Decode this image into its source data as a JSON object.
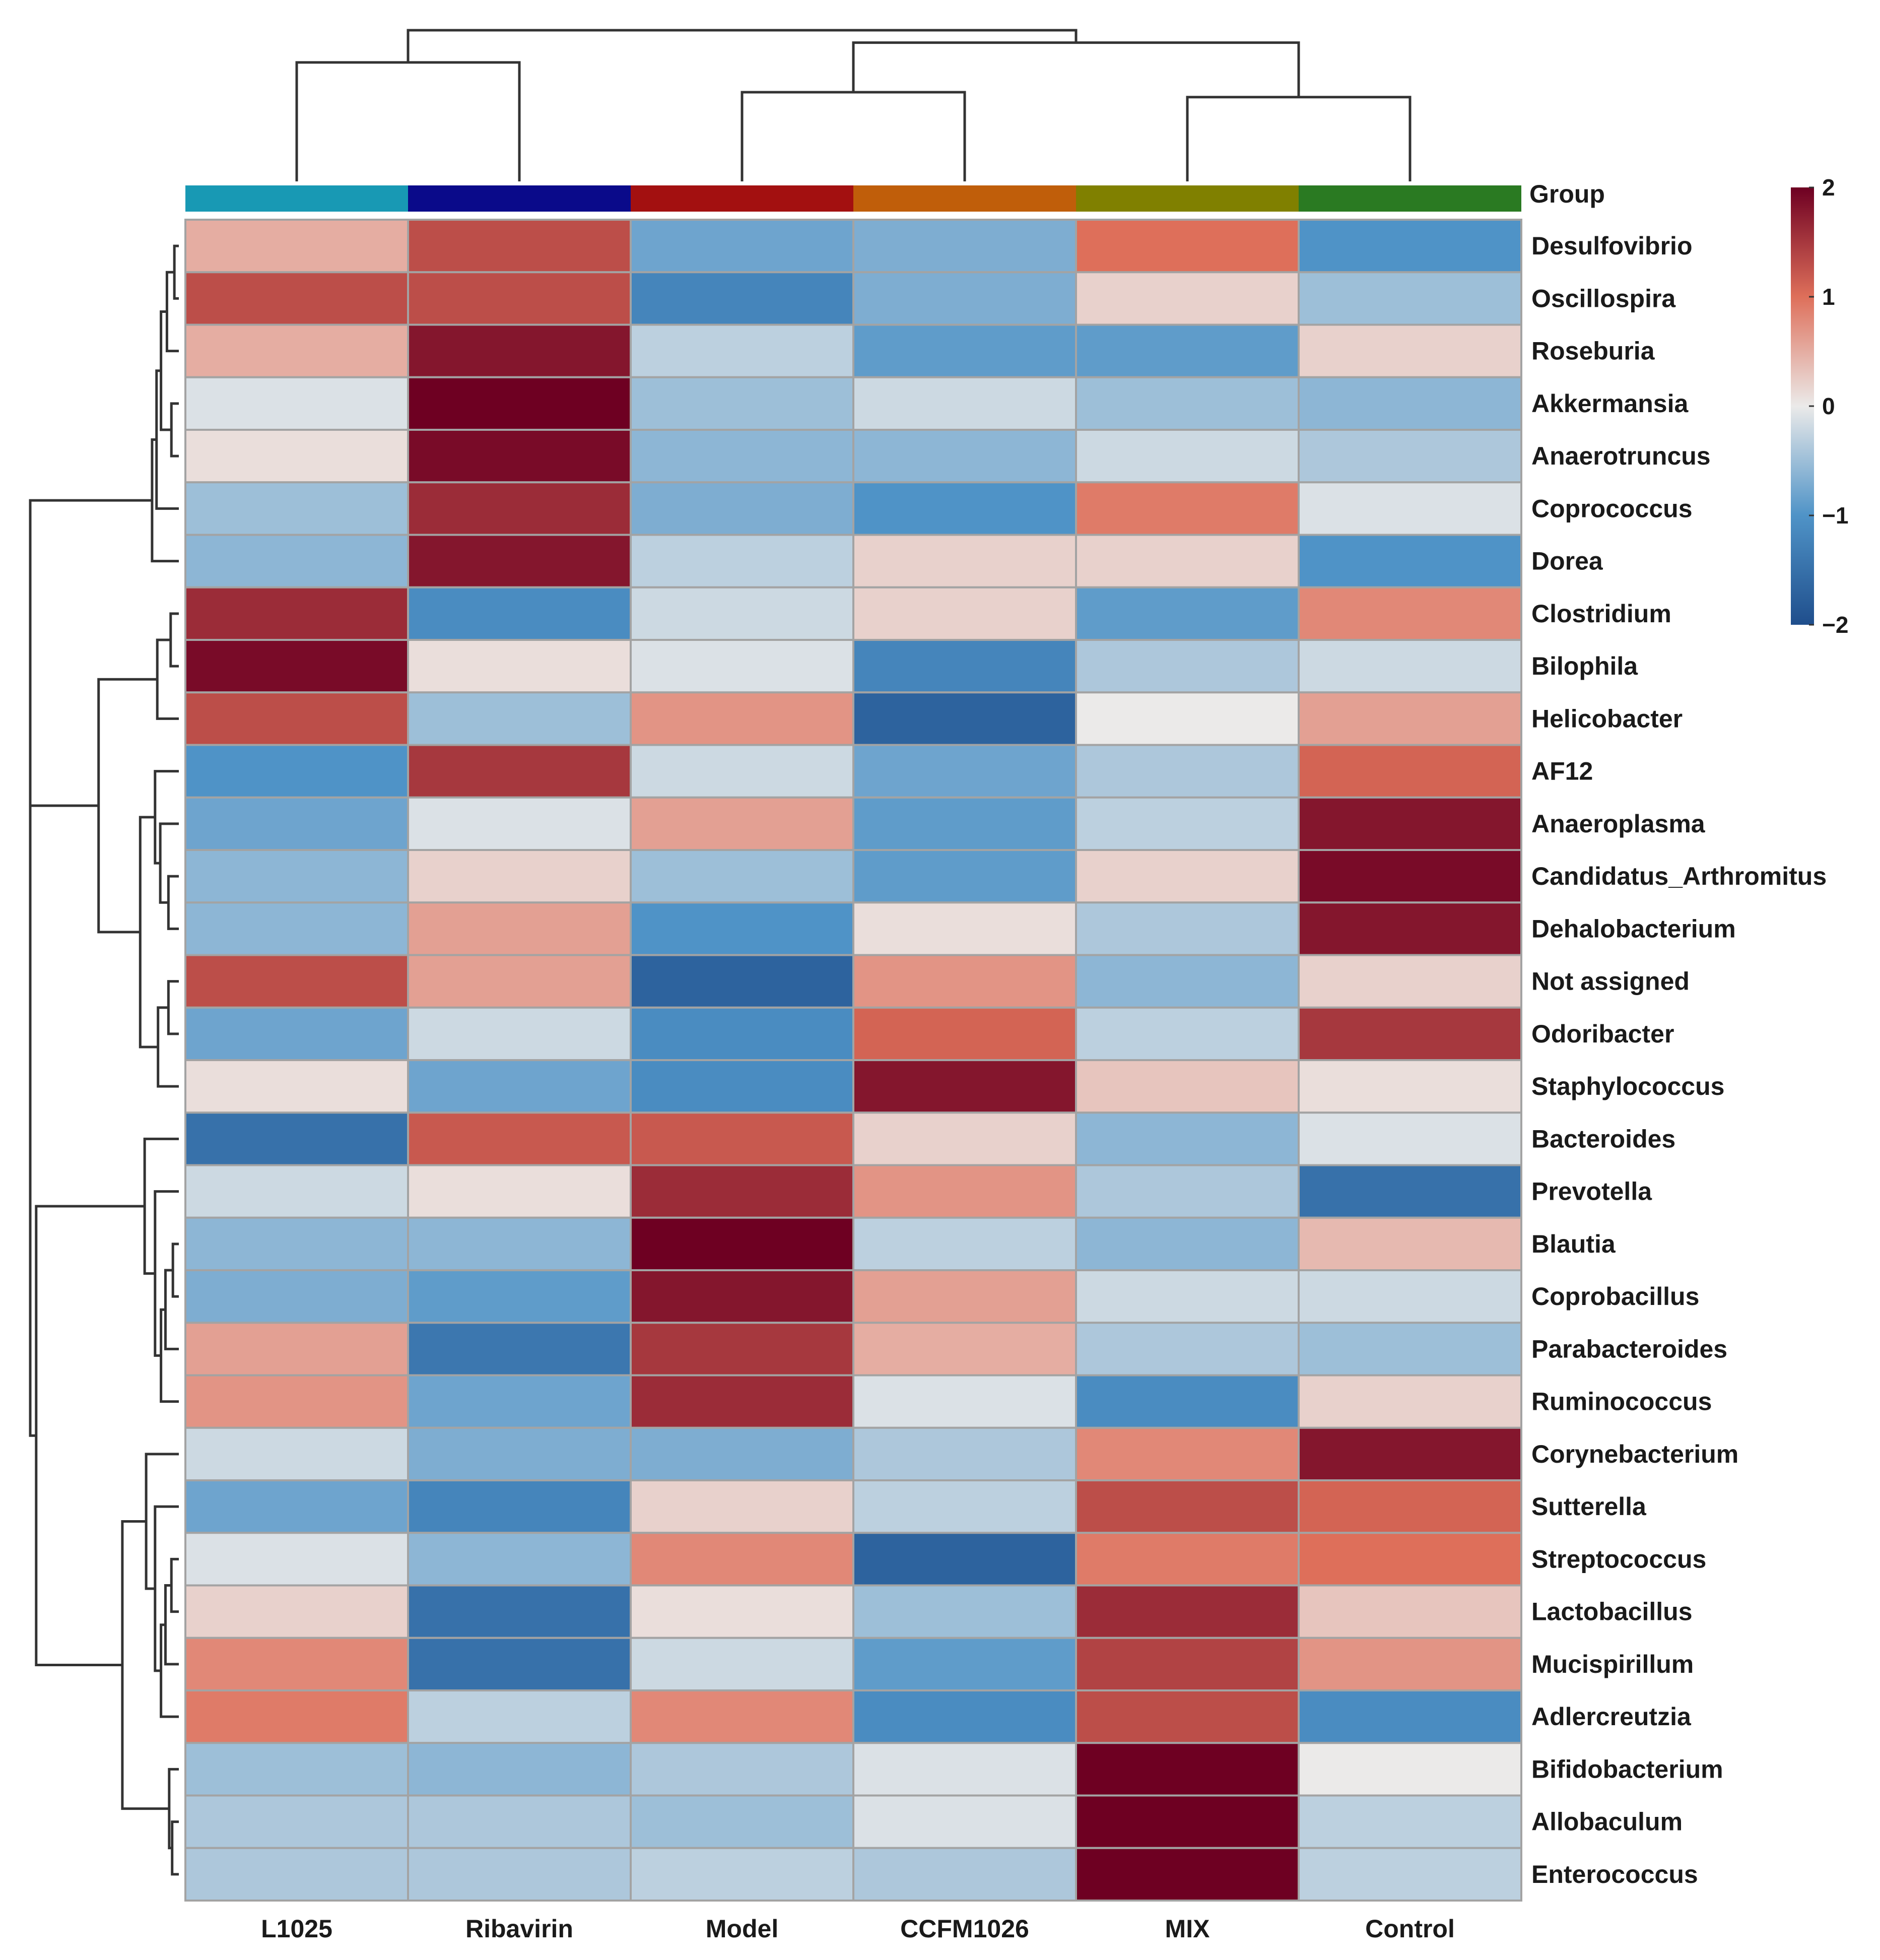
{
  "chart_data": {
    "type": "heatmap",
    "title": "",
    "columns": [
      "L1025",
      "Ribavirin",
      "Model",
      "CCFM1026",
      "MIX",
      "Control"
    ],
    "rows": [
      "Desulfovibrio",
      "Oscillospira",
      "Roseburia",
      "Akkermansia",
      "Anaerotruncus",
      "Coprococcus",
      "Dorea",
      "Clostridium",
      "Bilophila",
      "Helicobacter",
      "AF12",
      "Anaeroplasma",
      "Candidatus_Arthromitus",
      "Dehalobacterium",
      "Not assigned",
      "Odoribacter",
      "Staphylococcus",
      "Bacteroides",
      "Prevotella",
      "Blautia",
      "Coprobacillus",
      "Parabacteroides",
      "Ruminococcus",
      "Corynebacterium",
      "Sutterella",
      "Streptococcus",
      "Lactobacillus",
      "Mucispirillum",
      "Adlercreutzia",
      "Bifidobacterium",
      "Allobaculum",
      "Enterococcus"
    ],
    "values": [
      [
        0.5,
        1.3,
        -0.8,
        -0.7,
        1.0,
        -1.0
      ],
      [
        1.3,
        1.3,
        -1.2,
        -0.7,
        0.2,
        -0.5
      ],
      [
        0.5,
        1.8,
        -0.3,
        -0.9,
        -0.9,
        0.2
      ],
      [
        -0.1,
        2.0,
        -0.5,
        -0.2,
        -0.5,
        -0.6
      ],
      [
        0.1,
        1.9,
        -0.6,
        -0.6,
        -0.2,
        -0.4
      ],
      [
        -0.5,
        1.6,
        -0.7,
        -1.0,
        0.9,
        -0.1
      ],
      [
        -0.6,
        1.8,
        -0.3,
        0.2,
        0.2,
        -1.0
      ],
      [
        1.6,
        -1.1,
        -0.2,
        0.2,
        -0.9,
        0.8
      ],
      [
        1.9,
        0.1,
        -0.1,
        -1.2,
        -0.4,
        -0.2
      ],
      [
        1.3,
        -0.5,
        0.7,
        -1.7,
        0.0,
        0.6
      ],
      [
        -1.0,
        1.5,
        -0.2,
        -0.8,
        -0.4,
        1.1
      ],
      [
        -0.8,
        -0.1,
        0.6,
        -0.9,
        -0.3,
        1.8
      ],
      [
        -0.6,
        0.2,
        -0.5,
        -0.9,
        0.2,
        1.9
      ],
      [
        -0.6,
        0.6,
        -1.0,
        0.1,
        -0.4,
        1.8
      ],
      [
        1.3,
        0.6,
        -1.7,
        0.7,
        -0.6,
        0.2
      ],
      [
        -0.8,
        -0.2,
        -1.1,
        1.1,
        -0.3,
        1.5
      ],
      [
        0.1,
        -0.8,
        -1.1,
        1.8,
        0.3,
        0.1
      ],
      [
        -1.5,
        1.2,
        1.2,
        0.2,
        -0.6,
        -0.1
      ],
      [
        -0.2,
        0.1,
        1.6,
        0.7,
        -0.4,
        -1.5
      ],
      [
        -0.6,
        -0.6,
        2.0,
        -0.3,
        -0.6,
        0.4
      ],
      [
        -0.7,
        -0.9,
        1.8,
        0.6,
        -0.2,
        -0.2
      ],
      [
        0.6,
        -1.4,
        1.5,
        0.5,
        -0.4,
        -0.5
      ],
      [
        0.7,
        -0.8,
        1.6,
        -0.1,
        -1.1,
        0.2
      ],
      [
        -0.2,
        -0.7,
        -0.7,
        -0.4,
        0.8,
        1.8
      ],
      [
        -0.8,
        -1.2,
        0.2,
        -0.3,
        1.3,
        1.1
      ],
      [
        -0.1,
        -0.6,
        0.8,
        -1.7,
        0.9,
        1.0
      ],
      [
        0.2,
        -1.5,
        0.1,
        -0.5,
        1.6,
        0.3
      ],
      [
        0.8,
        -1.5,
        -0.2,
        -0.9,
        1.4,
        0.7
      ],
      [
        0.9,
        -0.3,
        0.8,
        -1.1,
        1.3,
        -1.1
      ],
      [
        -0.5,
        -0.6,
        -0.4,
        -0.1,
        2.0,
        0.0
      ],
      [
        -0.4,
        -0.4,
        -0.5,
        -0.1,
        2.0,
        -0.3
      ],
      [
        -0.4,
        -0.4,
        -0.3,
        -0.4,
        2.0,
        -0.3
      ]
    ],
    "group_annotation": {
      "label": "Group",
      "colors": [
        "#1899b4",
        "#0a0a8a",
        "#a31010",
        "#c05e0a",
        "#808000",
        "#2a7a22"
      ]
    },
    "color_scale": {
      "range": [
        -2,
        2
      ],
      "ticks": [
        "2",
        "1",
        "0",
        "−1",
        "−2"
      ],
      "tick_values": [
        2,
        1,
        0,
        -1,
        -2
      ],
      "stops": [
        {
          "value": -2,
          "color": "#1f4e8c"
        },
        {
          "value": -1,
          "color": "#4f93c7"
        },
        {
          "value": 0,
          "color": "#ebeae9"
        },
        {
          "value": 1,
          "color": "#de6f5a"
        },
        {
          "value": 2,
          "color": "#6e0022"
        }
      ]
    },
    "column_dendrogram": {
      "merges": [
        [
          4,
          5
        ],
        [
          2,
          3
        ],
        [
          0,
          1
        ],
        [
          7,
          6
        ],
        [
          9,
          8
        ]
      ]
    },
    "row_dendrogram": {
      "merges": [
        [
          0,
          1
        ],
        [
          32,
          2
        ],
        [
          3,
          4
        ],
        [
          34,
          33
        ],
        [
          35,
          5
        ],
        [
          36,
          6
        ],
        [
          7,
          8
        ],
        [
          38,
          9
        ],
        [
          12,
          13
        ],
        [
          40,
          11
        ],
        [
          41,
          10
        ],
        [
          14,
          15
        ],
        [
          43,
          16
        ],
        [
          44,
          42
        ],
        [
          39,
          45
        ],
        [
          37,
          46
        ],
        [
          19,
          20
        ],
        [
          48,
          21
        ],
        [
          49,
          22
        ],
        [
          50,
          18
        ],
        [
          51,
          17
        ],
        [
          25,
          26
        ],
        [
          53,
          27
        ],
        [
          54,
          28
        ],
        [
          55,
          24
        ],
        [
          56,
          23
        ],
        [
          30,
          31
        ],
        [
          58,
          29
        ],
        [
          59,
          57
        ],
        [
          52,
          60
        ],
        [
          47,
          61
        ]
      ],
      "heights": [
        0.3,
        0.8,
        0.5,
        1.2,
        1.5,
        1.8,
        0.55,
        1.45,
        0.7,
        1.25,
        1.6,
        0.7,
        1.4,
        2.6,
        5.4,
        10.0,
        0.4,
        0.9,
        1.2,
        1.6,
        2.3,
        0.5,
        0.9,
        1.2,
        1.6,
        2.2,
        0.45,
        0.65,
        3.8,
        9.6,
        10.0
      ]
    }
  }
}
